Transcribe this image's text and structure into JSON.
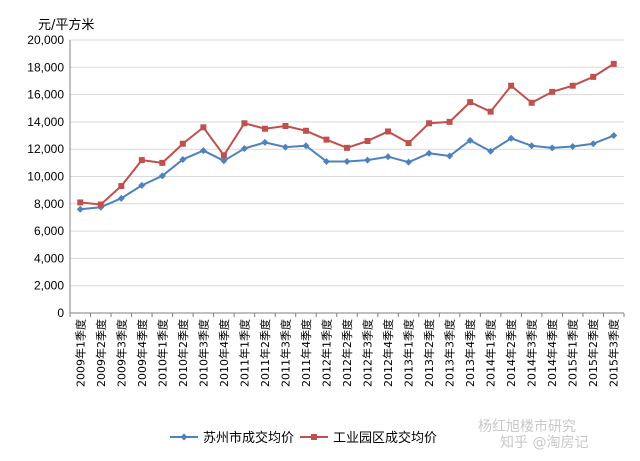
{
  "chart_data": {
    "type": "line",
    "unit_label": "元/平方米",
    "ylim": [
      0,
      20000
    ],
    "y_ticks": [
      "0",
      "2,000",
      "4,000",
      "6,000",
      "8,000",
      "10,000",
      "12,000",
      "14,000",
      "16,000",
      "18,000",
      "20,000"
    ],
    "y_tick_values": [
      0,
      2000,
      4000,
      6000,
      8000,
      10000,
      12000,
      14000,
      16000,
      18000,
      20000
    ],
    "grid": "horizontal",
    "legend_position": "bottom",
    "categories": [
      "2009年1季度",
      "2009年2季度",
      "2009年3季度",
      "2009年4季度",
      "2010年1季度",
      "2010年2季度",
      "2010年3季度",
      "2010年4季度",
      "2011年1季度",
      "2011年2季度",
      "2011年3季度",
      "2011年4季度",
      "2012年1季度",
      "2012年2季度",
      "2012年3季度",
      "2012年4季度",
      "2013年1季度",
      "2013年2季度",
      "2013年3季度",
      "2013年4季度",
      "2014年1季度",
      "2014年2季度",
      "2014年3季度",
      "2014年4季度",
      "2015年1季度",
      "2015年2季度",
      "2015年3季度"
    ],
    "series": [
      {
        "name": "苏州市成交均价",
        "color": "#4f81bd",
        "marker": "diamond",
        "values": [
          7600,
          7750,
          8400,
          9350,
          10050,
          11250,
          11900,
          11150,
          12050,
          12500,
          12150,
          12250,
          11100,
          11100,
          11200,
          11450,
          11050,
          11700,
          11500,
          12650,
          11850,
          12800,
          12250,
          12100,
          12200,
          12400,
          13000
        ]
      },
      {
        "name": "工业园区成交均价",
        "color": "#c0504d",
        "marker": "square",
        "values": [
          8100,
          7950,
          9300,
          11200,
          11000,
          12400,
          13600,
          11550,
          13900,
          13500,
          13700,
          13350,
          12700,
          12100,
          12600,
          13300,
          12450,
          13900,
          14000,
          15450,
          14750,
          16650,
          15400,
          16200,
          16650,
          17300,
          18250
        ]
      }
    ]
  },
  "watermark": {
    "source": "杨红旭楼市研究",
    "site": "知乎 @淘房记"
  }
}
